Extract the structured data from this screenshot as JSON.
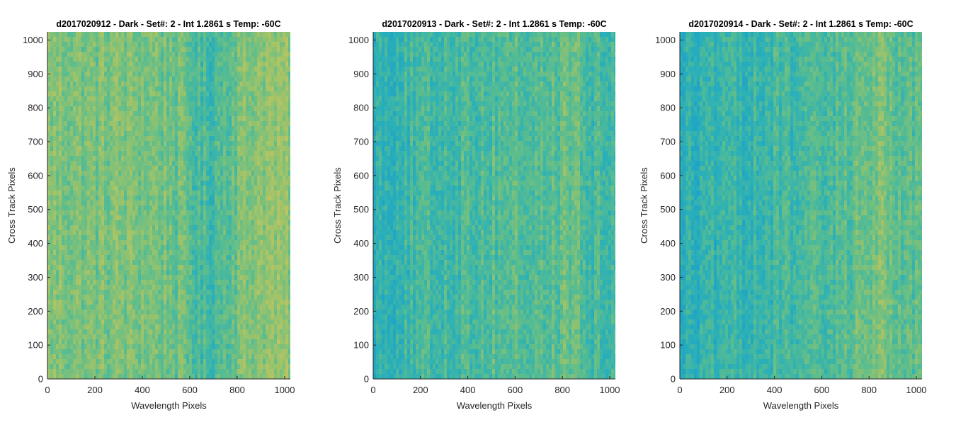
{
  "figure": {
    "background": "#ffffff"
  },
  "chart_data": [
    {
      "type": "heatmap",
      "title": "d2017020912 - Dark - Set#: 2 - Int 1.2861 s Temp: -60C",
      "xlabel": "Wavelength Pixels",
      "ylabel": "Cross Track Pixels",
      "xlim": [
        0,
        1024
      ],
      "ylim": [
        0,
        1024
      ],
      "xticks": [
        "0",
        "200",
        "400",
        "600",
        "800",
        "1000"
      ],
      "yticks": [
        "0",
        "100",
        "200",
        "300",
        "400",
        "500",
        "600",
        "700",
        "800",
        "900",
        "1000"
      ],
      "colormap": [
        "#1a9fcc",
        "#2bb0b8",
        "#5bbd8e",
        "#9cc36a",
        "#c9c55e"
      ],
      "column_profile": {
        "wavelength_pixel": [
          0,
          100,
          200,
          300,
          400,
          500,
          600,
          650,
          700,
          800,
          850,
          900,
          1000,
          1024
        ],
        "relative_level": [
          0.66,
          0.64,
          0.62,
          0.64,
          0.63,
          0.6,
          0.5,
          0.38,
          0.42,
          0.6,
          0.66,
          0.72,
          0.7,
          0.7
        ]
      }
    },
    {
      "type": "heatmap",
      "title": "d2017020913 - Dark - Set#: 2 - Int 1.2861 s Temp: -60C",
      "xlabel": "Wavelength Pixels",
      "ylabel": "Cross Track Pixels",
      "xlim": [
        0,
        1024
      ],
      "ylim": [
        0,
        1024
      ],
      "xticks": [
        "0",
        "200",
        "400",
        "600",
        "800",
        "1000"
      ],
      "yticks": [
        "0",
        "100",
        "200",
        "300",
        "400",
        "500",
        "600",
        "700",
        "800",
        "900",
        "1000"
      ],
      "colormap": [
        "#1a9fcc",
        "#2bb0b8",
        "#5bbd8e",
        "#9cc36a",
        "#c9c55e"
      ],
      "column_profile": {
        "wavelength_pixel": [
          0,
          100,
          200,
          300,
          400,
          500,
          600,
          700,
          800,
          850,
          900,
          1000,
          1024
        ],
        "relative_level": [
          0.28,
          0.32,
          0.36,
          0.4,
          0.42,
          0.46,
          0.48,
          0.44,
          0.52,
          0.56,
          0.4,
          0.36,
          0.36
        ]
      }
    },
    {
      "type": "heatmap",
      "title": "d2017020914 - Dark - Set#: 2 - Int 1.2861 s Temp: -60C",
      "xlabel": "Wavelength Pixels",
      "ylabel": "Cross Track Pixels",
      "xlim": [
        0,
        1024
      ],
      "ylim": [
        0,
        1024
      ],
      "xticks": [
        "0",
        "200",
        "400",
        "600",
        "800",
        "1000"
      ],
      "yticks": [
        "0",
        "100",
        "200",
        "300",
        "400",
        "500",
        "600",
        "700",
        "800",
        "900",
        "1000"
      ],
      "colormap": [
        "#1a9fcc",
        "#2bb0b8",
        "#5bbd8e",
        "#9cc36a",
        "#c9c55e"
      ],
      "column_profile": {
        "wavelength_pixel": [
          0,
          100,
          200,
          300,
          400,
          500,
          600,
          700,
          800,
          850,
          900,
          1000,
          1024
        ],
        "relative_level": [
          0.24,
          0.26,
          0.3,
          0.34,
          0.36,
          0.38,
          0.4,
          0.48,
          0.58,
          0.62,
          0.56,
          0.48,
          0.46
        ]
      }
    }
  ]
}
